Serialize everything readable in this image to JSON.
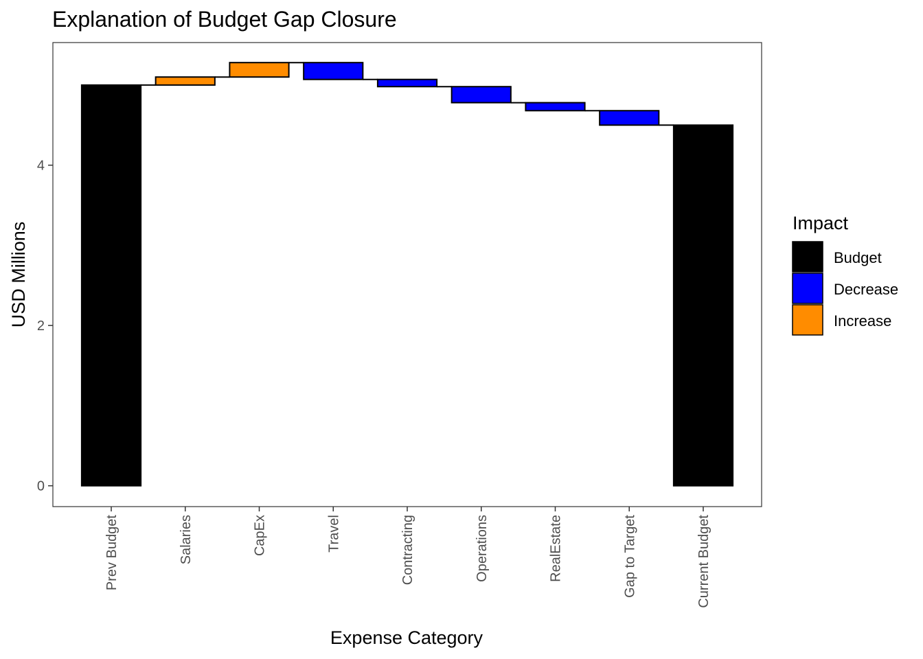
{
  "chart_data": {
    "type": "waterfall",
    "title": "Explanation of Budget Gap Closure",
    "xlabel": "Expense Category",
    "ylabel": "USD Millions",
    "ylim": [
      -0.26,
      5.53
    ],
    "yticks": [
      0,
      2,
      4
    ],
    "grid": false,
    "legend": {
      "title": "Impact",
      "placement": "right",
      "entries": [
        {
          "label": "Budget",
          "color": "#000000"
        },
        {
          "label": "Decrease",
          "color": "#0000FF"
        },
        {
          "label": "Increase",
          "color": "#FF8C00"
        }
      ]
    },
    "steps": [
      {
        "category": "Prev Budget",
        "start": 0,
        "end": 5.0,
        "impact": "Budget"
      },
      {
        "category": "Salaries",
        "start": 5.0,
        "end": 5.1,
        "impact": "Increase"
      },
      {
        "category": "CapEx",
        "start": 5.1,
        "end": 5.28,
        "impact": "Increase"
      },
      {
        "category": "Travel",
        "start": 5.28,
        "end": 5.07,
        "impact": "Decrease"
      },
      {
        "category": "Contracting",
        "start": 5.07,
        "end": 4.98,
        "impact": "Decrease"
      },
      {
        "category": "Operations",
        "start": 4.98,
        "end": 4.78,
        "impact": "Decrease"
      },
      {
        "category": "RealEstate",
        "start": 4.78,
        "end": 4.68,
        "impact": "Decrease"
      },
      {
        "category": "Gap to Target",
        "start": 4.68,
        "end": 4.5,
        "impact": "Decrease"
      },
      {
        "category": "Current Budget",
        "start": 0,
        "end": 4.5,
        "impact": "Budget"
      }
    ]
  }
}
